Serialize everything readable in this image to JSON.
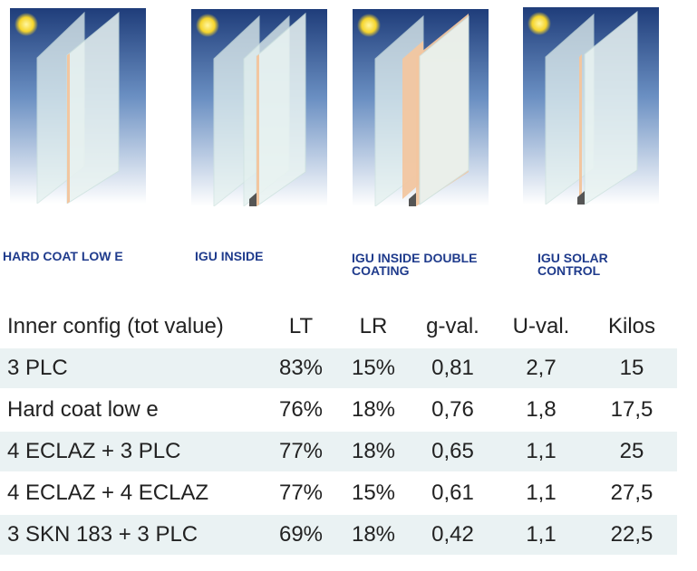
{
  "colors": {
    "sky_top": "#1f3d7a",
    "sky_bottom": "#ffffff",
    "sun": "#f6d52c",
    "glass": "#e4f1ef",
    "coating": "#f2c6a0",
    "caption_text": "#1f3b8c",
    "row_shade": "#eaf2f3"
  },
  "panels": [
    {
      "id": "hard-coat-low-e",
      "caption_line1": "HARD COAT LOW E",
      "caption_line2": ""
    },
    {
      "id": "igu-inside",
      "caption_line1": "IGU INSIDE",
      "caption_line2": ""
    },
    {
      "id": "igu-inside-double-coating",
      "caption_line1": "IGU INSIDE DOUBLE",
      "caption_line2": "COATING"
    },
    {
      "id": "igu-solar-control",
      "caption_line1": "IGU SOLAR",
      "caption_line2": "CONTROL"
    }
  ],
  "table": {
    "headers": [
      "Inner config (tot value)",
      "LT",
      "LR",
      "g-val.",
      "U-val.",
      "Kilos"
    ],
    "rows": [
      [
        "3 PLC",
        "83%",
        "15%",
        "0,81",
        "2,7",
        "15"
      ],
      [
        "Hard coat low e",
        "76%",
        "18%",
        "0,76",
        "1,8",
        "17,5"
      ],
      [
        "4 ECLAZ + 3 PLC",
        "77%",
        "18%",
        "0,65",
        "1,1",
        "25"
      ],
      [
        "4 ECLAZ + 4 ECLAZ",
        "77%",
        "15%",
        "0,61",
        "1,1",
        "27,5"
      ],
      [
        "3 SKN 183 + 3 PLC",
        "69%",
        "18%",
        "0,42",
        "1,1",
        "22,5"
      ]
    ]
  }
}
